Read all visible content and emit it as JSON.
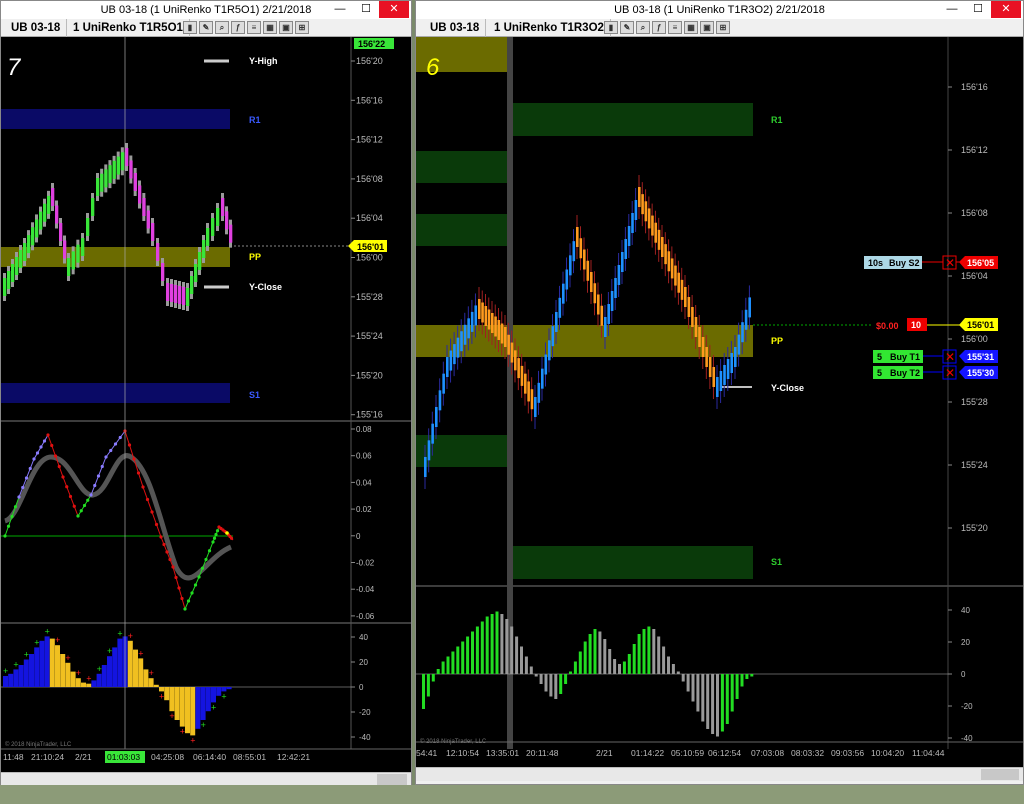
{
  "left_window": {
    "title": "UB 03-18 (1 UniRenko T1R5O1)  2/21/2018",
    "tab_instrument": "UB 03-18",
    "tab_period": "1 UniRenko T1R5O1",
    "panel_number": "7",
    "price_ticks": [
      "156'20",
      "156'16",
      "156'12",
      "156'08",
      "156'04",
      "156'00",
      "155'28",
      "155'24",
      "155'20",
      "155'16"
    ],
    "current_price": "156'01",
    "top_price_badge": "156'22",
    "levels": {
      "y_high": "Y-High",
      "r1": "R1",
      "pp": "PP",
      "y_close": "Y-Close",
      "s1": "S1"
    },
    "osc_ticks": [
      "0.08",
      "0.06",
      "0.04",
      "0.02",
      "0",
      "-0.02",
      "-0.04",
      "-0.06"
    ],
    "hist_ticks": [
      "40",
      "20",
      "0",
      "-20",
      "-40"
    ],
    "time_labels": [
      "11:48",
      "21:10:24",
      "2/21",
      "01:03:03",
      "04:25:08",
      "06:14:40",
      "08:55:01",
      "12:42:21"
    ],
    "cursor_time": "01:03:03",
    "copyright": "© 2018 NinjaTrader, LLC"
  },
  "right_window": {
    "title": "UB 03-18 (1 UniRenko T1R3O2)  2/21/2018",
    "tab_instrument": "UB 03-18",
    "tab_period": "1 UniRenko T1R3O2",
    "panel_number": "6",
    "price_ticks": [
      "156'16",
      "156'12",
      "156'08",
      "156'04",
      "156'00",
      "155'28",
      "155'24",
      "155'20"
    ],
    "levels": {
      "r1": "R1",
      "pp": "PP",
      "y_close": "Y-Close",
      "s1": "S1"
    },
    "orders": [
      {
        "qty": "10s",
        "label": "Buy S2",
        "price": "156'05"
      },
      {
        "qty": "5",
        "label": "Buy T1",
        "price": "155'31"
      },
      {
        "qty": "5",
        "label": "Buy T2",
        "price": "155'30"
      }
    ],
    "position": {
      "pnl": "$0.00",
      "qty": "10",
      "price": "156'01"
    },
    "hist_ticks": [
      "40",
      "20",
      "0",
      "-20",
      "-40"
    ],
    "time_labels": [
      "54:41",
      "12:10:54",
      "13:35:01",
      "20:11:48",
      "2/21",
      "01:14:22",
      "05:10:59",
      "06:12:54",
      "07:03:08",
      "08:03:32",
      "09:03:56",
      "10:04:20",
      "11:04:44"
    ],
    "copyright": "© 2018 NinjaTrader, LLC"
  },
  "colors": {
    "renko_up": "#39e639",
    "renko_down": "#e040e0",
    "wick": "#9a9a9a",
    "blue_bar": "#1e90ff",
    "orange_bar": "#ff9a1e",
    "pp_band": "#6b6b00",
    "r_band": "#0a0a66",
    "green_band": "#0a3a0a"
  }
}
